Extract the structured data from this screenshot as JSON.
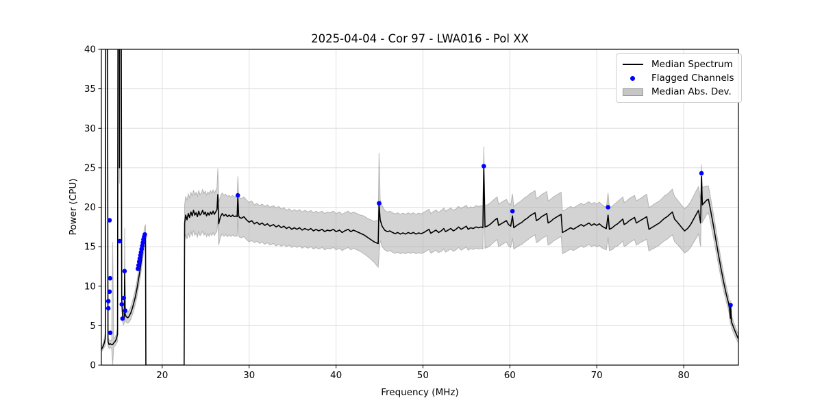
{
  "chart_data": {
    "type": "line",
    "title": "2025-04-04 - Cor 97 - LWA016 - Pol XX",
    "xlabel": "Frequency (MHz)",
    "ylabel": "Power (CPU)",
    "xlim": [
      13.0,
      86.3
    ],
    "ylim": [
      0,
      40
    ],
    "xticks": [
      20,
      30,
      40,
      50,
      60,
      70,
      80
    ],
    "yticks": [
      0,
      5,
      10,
      15,
      20,
      25,
      30,
      35,
      40
    ],
    "grid": true,
    "legend": {
      "position": "upper right",
      "items": [
        {
          "label": "Median Spectrum",
          "type": "line",
          "color": "#000000"
        },
        {
          "label": "Flagged Channels",
          "type": "marker",
          "color": "#0000ff"
        },
        {
          "label": "Median Abs. Dev.",
          "type": "patch",
          "color": "#c6c6c6"
        }
      ]
    },
    "colors": {
      "median_line": "#000000",
      "flagged_marker": "#0000ff",
      "mad_band_fill": "#a8a8a8",
      "mad_band_opacity": 0.5,
      "mad_band_edge": "#8a8a8a",
      "grid": "#dedede",
      "spine": "#000000"
    },
    "spectrum_format": [
      "frequency_mhz",
      "median_power",
      "mad"
    ],
    "spectrum": [
      [
        13.0,
        2.0,
        0.3
      ],
      [
        13.12,
        2.2,
        0.35
      ],
      [
        13.24,
        2.5,
        0.4
      ],
      [
        13.36,
        2.9,
        0.6
      ],
      [
        13.46,
        3.4,
        0.9
      ],
      [
        13.52,
        60,
        2.0
      ],
      [
        13.68,
        60,
        2.0
      ],
      [
        13.76,
        3.0,
        0.6
      ],
      [
        13.88,
        2.6,
        0.5
      ],
      [
        14.02,
        2.7,
        0.5
      ],
      [
        14.18,
        2.6,
        0.45
      ],
      [
        14.3,
        2.6,
        13.0
      ],
      [
        14.42,
        2.8,
        0.5
      ],
      [
        14.58,
        3.0,
        0.55
      ],
      [
        14.72,
        3.3,
        0.6
      ],
      [
        14.86,
        3.9,
        0.9
      ],
      [
        14.93,
        60,
        2.0
      ],
      [
        15.04,
        60,
        2.0
      ],
      [
        15.08,
        25,
        2.0
      ],
      [
        15.13,
        60,
        2.0
      ],
      [
        15.26,
        60,
        2.0
      ],
      [
        15.34,
        8.3,
        1.0
      ],
      [
        15.44,
        6.3,
        0.8
      ],
      [
        15.54,
        5.8,
        0.7
      ],
      [
        15.63,
        6.0,
        0.7
      ],
      [
        15.68,
        11.9,
        5.5
      ],
      [
        15.74,
        6.4,
        0.8
      ],
      [
        15.88,
        6.1,
        0.7
      ],
      [
        16.04,
        6.0,
        0.7
      ],
      [
        16.2,
        6.2,
        0.75
      ],
      [
        16.38,
        6.6,
        0.8
      ],
      [
        16.56,
        7.2,
        0.85
      ],
      [
        16.74,
        7.9,
        0.9
      ],
      [
        16.92,
        8.7,
        0.95
      ],
      [
        17.1,
        9.7,
        1.0
      ],
      [
        17.28,
        10.9,
        1.05
      ],
      [
        17.46,
        12.1,
        1.1
      ],
      [
        17.64,
        13.5,
        1.1
      ],
      [
        17.82,
        15.1,
        1.15
      ],
      [
        17.96,
        16.2,
        1.2
      ],
      [
        18.08,
        16.6,
        1.2
      ],
      [
        18.12,
        0,
        0
      ],
      [
        22.52,
        0,
        0
      ],
      [
        22.58,
        18.0,
        2.3
      ],
      [
        22.7,
        19.0,
        2.4
      ],
      [
        22.85,
        18.4,
        2.45
      ],
      [
        23.0,
        19.2,
        2.5
      ],
      [
        23.15,
        18.7,
        2.5
      ],
      [
        23.3,
        19.4,
        2.5
      ],
      [
        23.45,
        18.9,
        2.55
      ],
      [
        23.6,
        19.6,
        2.55
      ],
      [
        23.75,
        19.0,
        2.55
      ],
      [
        23.9,
        19.3,
        2.6
      ],
      [
        24.05,
        18.8,
        2.6
      ],
      [
        24.2,
        19.5,
        2.6
      ],
      [
        24.35,
        19.0,
        2.6
      ],
      [
        24.5,
        19.2,
        2.6
      ],
      [
        24.65,
        19.6,
        2.65
      ],
      [
        24.8,
        19.1,
        2.65
      ],
      [
        24.95,
        19.4,
        2.65
      ],
      [
        25.1,
        18.9,
        2.65
      ],
      [
        25.25,
        19.3,
        2.65
      ],
      [
        25.4,
        19.0,
        2.7
      ],
      [
        25.55,
        19.4,
        2.7
      ],
      [
        25.7,
        19.1,
        2.7
      ],
      [
        25.85,
        19.5,
        2.7
      ],
      [
        26.0,
        19.1,
        2.7
      ],
      [
        26.15,
        19.4,
        2.7
      ],
      [
        26.3,
        19.7,
        2.75
      ],
      [
        26.4,
        21.6,
        3.3
      ],
      [
        26.5,
        17.9,
        2.7
      ],
      [
        26.7,
        18.8,
        2.6
      ],
      [
        26.9,
        19.2,
        2.6
      ],
      [
        27.1,
        18.9,
        2.6
      ],
      [
        27.3,
        19.1,
        2.55
      ],
      [
        27.5,
        18.8,
        2.55
      ],
      [
        27.7,
        19.0,
        2.5
      ],
      [
        27.9,
        18.8,
        2.5
      ],
      [
        28.1,
        19.0,
        2.5
      ],
      [
        28.3,
        18.8,
        2.5
      ],
      [
        28.5,
        18.9,
        2.5
      ],
      [
        28.62,
        18.8,
        2.5
      ],
      [
        28.7,
        21.3,
        2.6
      ],
      [
        28.8,
        18.9,
        2.5
      ],
      [
        28.9,
        18.7,
        2.5
      ],
      [
        29.1,
        18.6,
        2.5
      ],
      [
        29.4,
        18.8,
        2.5
      ],
      [
        29.7,
        18.4,
        2.5
      ],
      [
        30.0,
        18.1,
        2.5
      ],
      [
        30.3,
        18.3,
        2.5
      ],
      [
        30.6,
        17.9,
        2.4
      ],
      [
        30.9,
        18.1,
        2.4
      ],
      [
        31.2,
        17.8,
        2.4
      ],
      [
        31.5,
        18.0,
        2.4
      ],
      [
        31.8,
        17.7,
        2.4
      ],
      [
        32.1,
        17.9,
        2.4
      ],
      [
        32.4,
        17.6,
        2.4
      ],
      [
        32.8,
        17.8,
        2.4
      ],
      [
        33.1,
        17.5,
        2.4
      ],
      [
        33.4,
        17.7,
        2.4
      ],
      [
        33.7,
        17.4,
        2.35
      ],
      [
        34.0,
        17.6,
        2.35
      ],
      [
        34.3,
        17.3,
        2.3
      ],
      [
        34.6,
        17.5,
        2.3
      ],
      [
        34.9,
        17.2,
        2.3
      ],
      [
        35.2,
        17.4,
        2.3
      ],
      [
        35.5,
        17.2,
        2.3
      ],
      [
        35.8,
        17.4,
        2.3
      ],
      [
        36.1,
        17.1,
        2.3
      ],
      [
        36.4,
        17.3,
        2.3
      ],
      [
        36.8,
        17.1,
        2.3
      ],
      [
        37.1,
        17.3,
        2.3
      ],
      [
        37.4,
        17.0,
        2.3
      ],
      [
        37.7,
        17.2,
        2.3
      ],
      [
        38.0,
        17.0,
        2.3
      ],
      [
        38.4,
        17.2,
        2.3
      ],
      [
        38.7,
        16.9,
        2.3
      ],
      [
        39.0,
        17.1,
        2.3
      ],
      [
        39.3,
        17.0,
        2.3
      ],
      [
        39.7,
        17.2,
        2.3
      ],
      [
        40.0,
        16.9,
        2.3
      ],
      [
        40.4,
        17.1,
        2.3
      ],
      [
        40.7,
        16.8,
        2.3
      ],
      [
        41.0,
        17.0,
        2.3
      ],
      [
        41.4,
        17.2,
        2.3
      ],
      [
        41.7,
        16.9,
        2.3
      ],
      [
        42.0,
        17.1,
        2.3
      ],
      [
        42.4,
        16.9,
        2.3
      ],
      [
        42.8,
        16.7,
        2.3
      ],
      [
        43.2,
        16.5,
        2.4
      ],
      [
        43.6,
        16.2,
        2.4
      ],
      [
        44.0,
        15.9,
        2.5
      ],
      [
        44.4,
        15.6,
        2.6
      ],
      [
        44.85,
        15.4,
        3.0
      ],
      [
        44.95,
        20.4,
        6.5
      ],
      [
        45.08,
        18.4,
        2.6
      ],
      [
        45.3,
        17.6,
        2.6
      ],
      [
        45.6,
        17.1,
        2.5
      ],
      [
        45.9,
        16.9,
        2.5
      ],
      [
        46.2,
        17.0,
        2.5
      ],
      [
        46.5,
        16.8,
        2.5
      ],
      [
        46.8,
        16.65,
        2.5
      ],
      [
        47.1,
        16.8,
        2.5
      ],
      [
        47.4,
        16.6,
        2.5
      ],
      [
        47.7,
        16.75,
        2.5
      ],
      [
        48.0,
        16.6,
        2.5
      ],
      [
        48.3,
        16.8,
        2.5
      ],
      [
        48.6,
        16.65,
        2.5
      ],
      [
        48.9,
        16.8,
        2.5
      ],
      [
        49.2,
        16.6,
        2.5
      ],
      [
        49.5,
        16.75,
        2.5
      ],
      [
        49.8,
        16.65,
        2.5
      ],
      [
        50.1,
        16.8,
        2.55
      ],
      [
        50.4,
        17.0,
        2.55
      ],
      [
        50.7,
        17.2,
        2.55
      ],
      [
        50.9,
        16.7,
        2.5
      ],
      [
        51.2,
        16.9,
        2.55
      ],
      [
        51.5,
        17.1,
        2.55
      ],
      [
        51.8,
        16.8,
        2.55
      ],
      [
        52.1,
        17.0,
        2.6
      ],
      [
        52.4,
        17.3,
        2.6
      ],
      [
        52.6,
        16.9,
        2.6
      ],
      [
        52.9,
        17.1,
        2.6
      ],
      [
        53.2,
        17.3,
        2.6
      ],
      [
        53.5,
        17.0,
        2.6
      ],
      [
        53.8,
        17.2,
        2.6
      ],
      [
        54.1,
        17.5,
        2.6
      ],
      [
        54.4,
        17.2,
        2.65
      ],
      [
        54.7,
        17.4,
        2.65
      ],
      [
        55.0,
        17.6,
        2.65
      ],
      [
        55.2,
        17.2,
        2.65
      ],
      [
        55.5,
        17.4,
        2.65
      ],
      [
        55.8,
        17.3,
        2.65
      ],
      [
        56.1,
        17.5,
        2.7
      ],
      [
        56.4,
        17.4,
        2.7
      ],
      [
        56.7,
        17.5,
        2.7
      ],
      [
        56.9,
        17.4,
        2.7
      ],
      [
        57.0,
        24.9,
        2.8
      ],
      [
        57.14,
        17.5,
        2.7
      ],
      [
        57.4,
        17.6,
        2.7
      ],
      [
        57.7,
        17.8,
        2.7
      ],
      [
        58.0,
        18.1,
        2.7
      ],
      [
        58.3,
        18.4,
        2.7
      ],
      [
        58.55,
        18.6,
        2.7
      ],
      [
        58.7,
        17.7,
        2.7
      ],
      [
        59.0,
        17.9,
        2.7
      ],
      [
        59.3,
        18.1,
        2.7
      ],
      [
        59.6,
        18.3,
        2.7
      ],
      [
        59.85,
        17.8,
        2.7
      ],
      [
        60.1,
        17.6,
        2.7
      ],
      [
        60.3,
        18.9,
        2.8
      ],
      [
        60.45,
        17.4,
        2.7
      ],
      [
        60.8,
        17.7,
        2.75
      ],
      [
        61.1,
        17.9,
        2.75
      ],
      [
        61.4,
        18.1,
        2.8
      ],
      [
        61.7,
        18.4,
        2.8
      ],
      [
        62.0,
        18.6,
        2.8
      ],
      [
        62.3,
        18.9,
        2.8
      ],
      [
        62.6,
        19.1,
        2.8
      ],
      [
        62.9,
        19.3,
        2.8
      ],
      [
        63.05,
        18.3,
        2.8
      ],
      [
        63.35,
        18.5,
        2.8
      ],
      [
        63.65,
        18.8,
        2.8
      ],
      [
        63.95,
        19.0,
        2.8
      ],
      [
        64.25,
        19.2,
        2.8
      ],
      [
        64.4,
        18.0,
        2.8
      ],
      [
        64.7,
        18.2,
        2.8
      ],
      [
        65.0,
        18.5,
        2.8
      ],
      [
        65.3,
        18.7,
        2.8
      ],
      [
        65.6,
        18.9,
        2.8
      ],
      [
        65.9,
        19.1,
        2.8
      ],
      [
        66.05,
        16.8,
        2.7
      ],
      [
        66.4,
        17.0,
        2.7
      ],
      [
        66.7,
        17.2,
        2.7
      ],
      [
        67.0,
        17.4,
        2.7
      ],
      [
        67.3,
        17.2,
        2.7
      ],
      [
        67.6,
        17.4,
        2.7
      ],
      [
        67.9,
        17.6,
        2.7
      ],
      [
        68.2,
        17.8,
        2.7
      ],
      [
        68.5,
        17.6,
        2.7
      ],
      [
        68.8,
        17.8,
        2.7
      ],
      [
        69.1,
        18.0,
        2.7
      ],
      [
        69.4,
        17.7,
        2.7
      ],
      [
        69.7,
        17.9,
        2.7
      ],
      [
        70.0,
        17.7,
        2.7
      ],
      [
        70.3,
        17.9,
        2.75
      ],
      [
        70.6,
        17.6,
        2.75
      ],
      [
        70.9,
        17.4,
        2.7
      ],
      [
        71.1,
        17.3,
        2.7
      ],
      [
        71.3,
        19.0,
        2.8
      ],
      [
        71.45,
        17.2,
        2.7
      ],
      [
        71.8,
        17.4,
        2.75
      ],
      [
        72.1,
        17.7,
        2.75
      ],
      [
        72.4,
        17.9,
        2.8
      ],
      [
        72.7,
        18.2,
        2.8
      ],
      [
        73.0,
        18.5,
        2.8
      ],
      [
        73.15,
        17.8,
        2.8
      ],
      [
        73.45,
        18.0,
        2.8
      ],
      [
        73.75,
        18.3,
        2.8
      ],
      [
        74.05,
        18.5,
        2.8
      ],
      [
        74.35,
        18.7,
        2.8
      ],
      [
        74.55,
        18.0,
        2.8
      ],
      [
        74.85,
        18.2,
        2.8
      ],
      [
        75.15,
        18.4,
        2.8
      ],
      [
        75.45,
        18.6,
        2.85
      ],
      [
        75.75,
        18.8,
        2.85
      ],
      [
        76.0,
        17.2,
        2.75
      ],
      [
        76.3,
        17.4,
        2.75
      ],
      [
        76.6,
        17.6,
        2.8
      ],
      [
        76.9,
        17.8,
        2.8
      ],
      [
        77.2,
        18.0,
        2.8
      ],
      [
        77.5,
        18.3,
        2.8
      ],
      [
        77.8,
        18.6,
        2.85
      ],
      [
        78.1,
        18.8,
        2.85
      ],
      [
        78.4,
        19.1,
        2.85
      ],
      [
        78.7,
        19.4,
        2.9
      ],
      [
        78.95,
        18.5,
        2.85
      ],
      [
        79.2,
        18.2,
        2.85
      ],
      [
        79.5,
        17.8,
        2.8
      ],
      [
        79.8,
        17.4,
        2.8
      ],
      [
        80.1,
        17.0,
        2.8
      ],
      [
        80.45,
        17.3,
        2.85
      ],
      [
        80.8,
        17.8,
        2.9
      ],
      [
        81.1,
        18.4,
        2.95
      ],
      [
        81.4,
        19.0,
        3.0
      ],
      [
        81.7,
        19.6,
        3.0
      ],
      [
        81.95,
        18.0,
        3.0
      ],
      [
        82.0,
        20.8,
        2.5
      ],
      [
        82.05,
        23.9,
        1.5
      ],
      [
        82.15,
        20.3,
        2.2
      ],
      [
        82.4,
        20.6,
        2.0
      ],
      [
        82.65,
        20.9,
        1.8
      ],
      [
        82.85,
        21.0,
        1.7
      ],
      [
        83.1,
        19.6,
        1.6
      ],
      [
        83.4,
        17.8,
        1.5
      ],
      [
        83.7,
        15.9,
        1.4
      ],
      [
        84.0,
        14.0,
        1.3
      ],
      [
        84.3,
        12.2,
        1.2
      ],
      [
        84.6,
        10.5,
        1.1
      ],
      [
        84.9,
        9.0,
        1.0
      ],
      [
        85.15,
        7.9,
        0.9
      ],
      [
        85.3,
        6.9,
        0.85
      ],
      [
        85.38,
        5.9,
        0.8
      ],
      [
        85.42,
        7.4,
        0.8
      ],
      [
        85.5,
        5.5,
        0.75
      ],
      [
        85.8,
        4.6,
        0.7
      ],
      [
        86.1,
        3.8,
        0.6
      ],
      [
        86.3,
        3.3,
        0.55
      ]
    ],
    "flagged_channels_format": [
      "frequency_mhz",
      "power"
    ],
    "flagged_channels": [
      [
        13.8,
        8.1
      ],
      [
        13.8,
        7.2
      ],
      [
        13.94,
        18.35
      ],
      [
        13.94,
        9.3
      ],
      [
        14.0,
        11.0
      ],
      [
        14.02,
        4.1
      ],
      [
        15.1,
        15.7
      ],
      [
        15.35,
        7.7
      ],
      [
        15.43,
        5.9
      ],
      [
        15.58,
        8.5
      ],
      [
        15.67,
        11.9
      ],
      [
        15.74,
        6.9
      ],
      [
        17.2,
        12.2
      ],
      [
        17.28,
        12.65
      ],
      [
        17.35,
        13.1
      ],
      [
        17.42,
        13.5
      ],
      [
        17.49,
        13.9
      ],
      [
        17.56,
        14.3
      ],
      [
        17.63,
        14.7
      ],
      [
        17.7,
        15.1
      ],
      [
        17.77,
        15.5
      ],
      [
        17.84,
        15.9
      ],
      [
        17.92,
        16.25
      ],
      [
        18.0,
        16.55
      ],
      [
        28.7,
        21.5
      ],
      [
        44.95,
        20.5
      ],
      [
        57.0,
        25.2
      ],
      [
        60.3,
        19.5
      ],
      [
        71.3,
        20.0
      ],
      [
        82.05,
        24.3
      ],
      [
        85.4,
        7.6
      ]
    ]
  }
}
